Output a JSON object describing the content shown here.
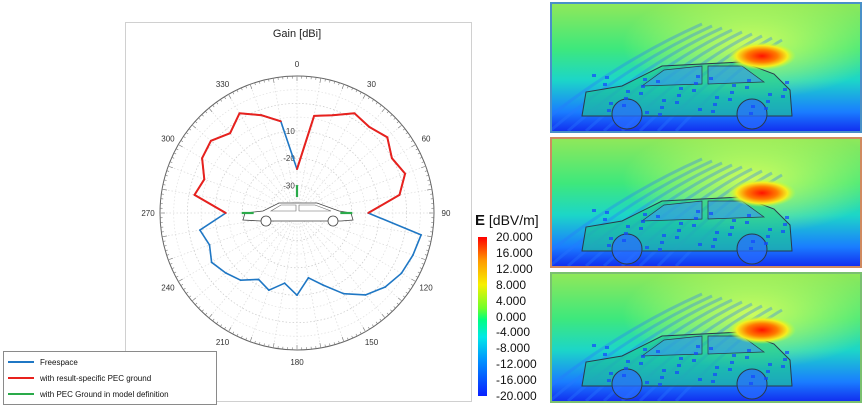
{
  "chart_data": [
    {
      "type": "polar-line",
      "title": "Gain [dBi]",
      "angular_ticks": [
        "0",
        "30",
        "60",
        "90",
        "120",
        "150",
        "180",
        "210",
        "240",
        "270",
        "300",
        "330"
      ],
      "radial_ticks": [
        "-10",
        "-20",
        "-30"
      ],
      "radial_range": [
        -40,
        10
      ],
      "grid": true,
      "legend_placement": "bottom-left",
      "series": [
        {
          "name": "Freespace",
          "color": "#1f77c4",
          "angles_deg": [
            0,
            10,
            20,
            30,
            40,
            50,
            60,
            70,
            80,
            90,
            100,
            110,
            120,
            130,
            140,
            150,
            160,
            170,
            180,
            190,
            200,
            210,
            220,
            230,
            240,
            250,
            260,
            270,
            280,
            290,
            300,
            310,
            320,
            330,
            340,
            350
          ],
          "gain_dbi": [
            -24,
            -4,
            -2,
            2,
            1,
            3,
            0,
            2,
            -2,
            -14,
            6,
            5,
            4,
            2,
            -1,
            -6,
            -12,
            -16,
            -10,
            -14,
            -10,
            -12,
            -8,
            -6,
            -4,
            -6,
            -4,
            -14,
            -2,
            -4,
            0,
            1,
            -2,
            2,
            -2,
            -6
          ]
        },
        {
          "name": "with result-specific PEC ground",
          "color": "#e8211d",
          "angles_deg": [
            0,
            10,
            20,
            30,
            40,
            50,
            60,
            70,
            80,
            90,
            270,
            280,
            290,
            300,
            310,
            320,
            330,
            340,
            350
          ],
          "gain_dbi": [
            -24,
            -4,
            -2,
            2,
            1,
            3,
            0,
            2,
            -2,
            -14,
            -14,
            -2,
            -4,
            0,
            1,
            -2,
            2,
            -2,
            -6
          ]
        },
        {
          "name": "with PEC Ground in model definition",
          "color": "#2aaa4a",
          "angles_deg": [
            0,
            90,
            270
          ],
          "gain_dbi": [
            -32,
            -22,
            -22
          ]
        }
      ]
    },
    {
      "type": "heatmap",
      "title": "",
      "colorbar_label_bold": "E",
      "colorbar_label": "[dBV/m]",
      "colorbar_ticks": [
        "20.000",
        "16.000",
        "12.000",
        "8.000",
        "4.000",
        "0.000",
        "-4.000",
        "-8.000",
        "-12.000",
        "-16.000",
        "-20.000"
      ],
      "colorbar_range": [
        -20,
        20
      ],
      "panels": [
        {
          "border_color": "#4a90c8"
        },
        {
          "border_color": "#d08a60"
        },
        {
          "border_color": "#7ac070"
        }
      ]
    }
  ]
}
